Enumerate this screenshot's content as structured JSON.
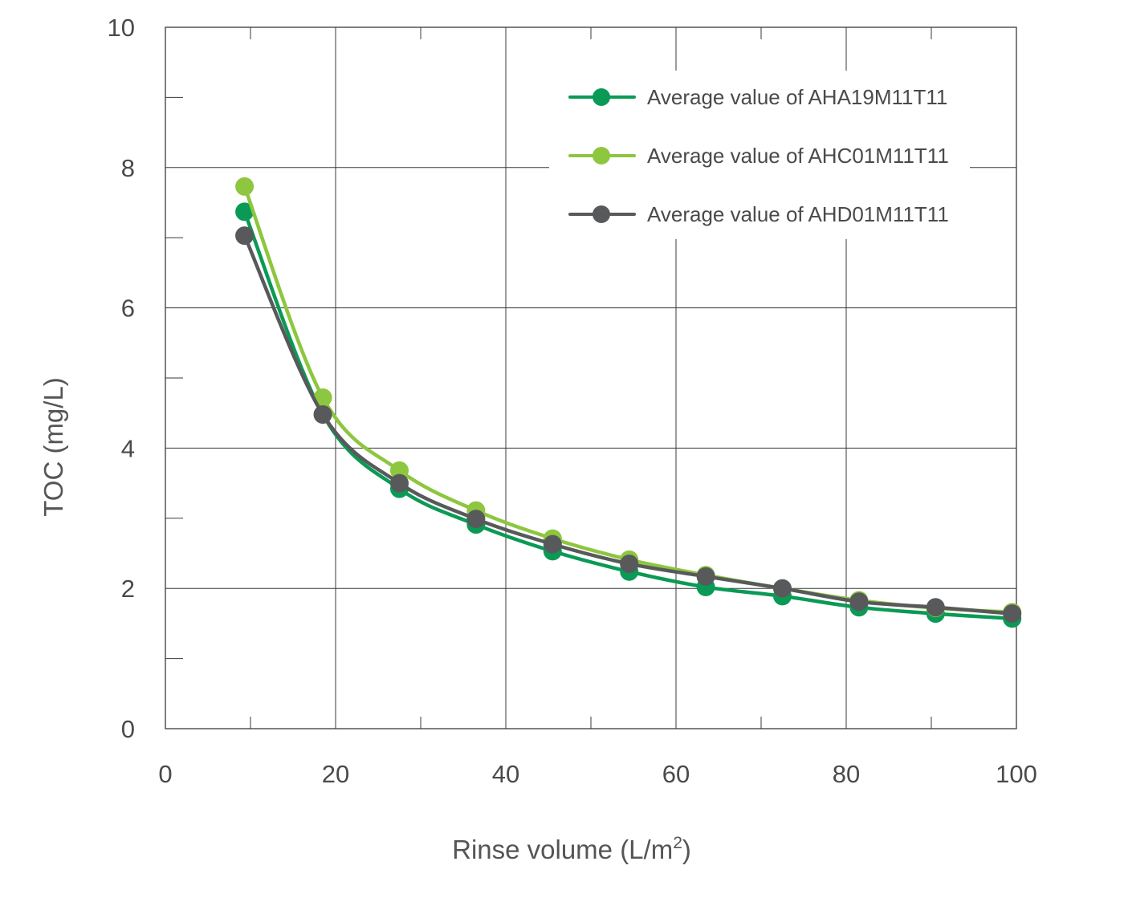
{
  "chart_data": {
    "type": "line",
    "title": "",
    "xlabel": "Rinse volume (L/m",
    "xlabel_superscript": "2",
    "xlabel_suffix": ")",
    "ylabel": "TOC (mg/L)",
    "xlim": [
      0,
      100
    ],
    "ylim": [
      0,
      10
    ],
    "x_ticks": [
      0,
      20,
      40,
      60,
      80,
      100
    ],
    "x_tick_labels": [
      "0",
      "20",
      "40",
      "60",
      "80",
      "100"
    ],
    "x_minor_ticks": [
      10,
      30,
      50,
      70,
      90
    ],
    "y_ticks": [
      0,
      2,
      4,
      6,
      8,
      10
    ],
    "y_tick_labels": [
      "0",
      "2",
      "4",
      "6",
      "8",
      "10"
    ],
    "y_minor_ticks": [
      1,
      3,
      5,
      7,
      9
    ],
    "grid": true,
    "legend_position": "top-right",
    "x": [
      9.3,
      18.5,
      27.5,
      36.5,
      45.5,
      54.5,
      63.5,
      72.5,
      81.5,
      90.5,
      99.5
    ],
    "series": [
      {
        "name": "Average value of AHA19M11T11",
        "color": "#0a9a55",
        "values": [
          7.37,
          4.48,
          3.42,
          2.91,
          2.53,
          2.24,
          2.02,
          1.89,
          1.73,
          1.64,
          1.57
        ]
      },
      {
        "name": "Average value of AHC01M11T11",
        "color": "#8dc63f",
        "values": [
          7.73,
          4.72,
          3.68,
          3.11,
          2.71,
          2.41,
          2.19,
          2.0,
          1.83,
          1.72,
          1.66
        ]
      },
      {
        "name": "Average value of AHD01M11T11",
        "color": "#58595b",
        "values": [
          7.03,
          4.48,
          3.5,
          2.99,
          2.63,
          2.35,
          2.17,
          2.0,
          1.81,
          1.73,
          1.64
        ]
      }
    ]
  }
}
